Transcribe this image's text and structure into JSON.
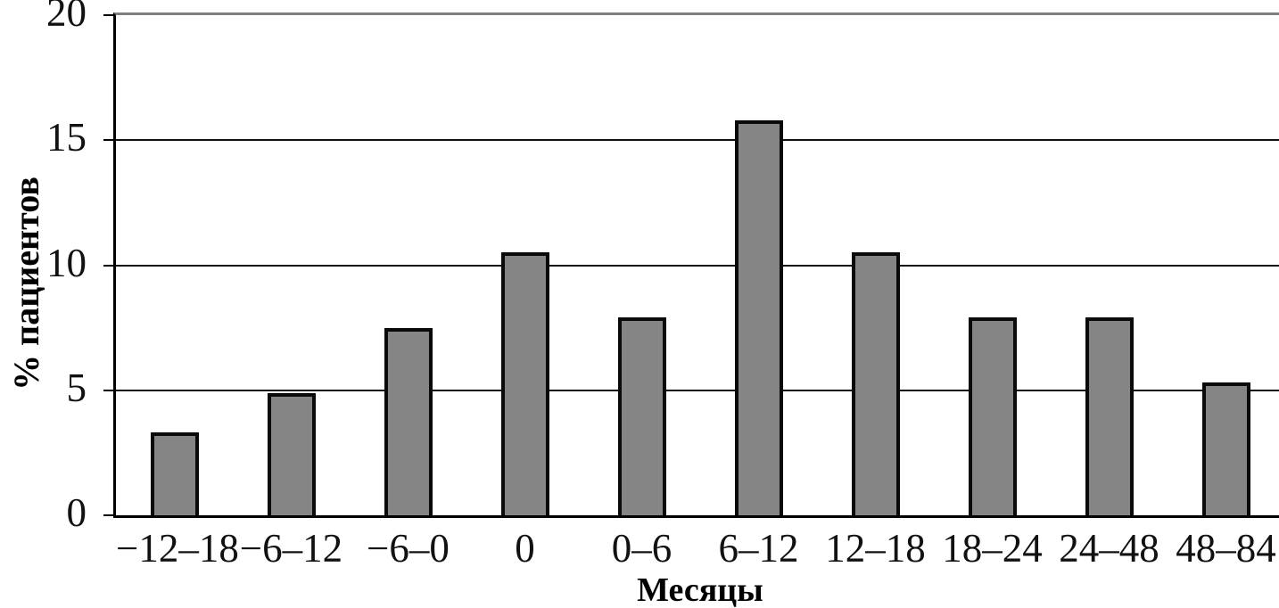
{
  "chart_data": {
    "type": "bar",
    "title": "",
    "categories": [
      "−12–18",
      "−6–12",
      "−6–0",
      "0",
      "0–6",
      "6–12",
      "12–18",
      "18–24",
      "24–48",
      "48–84"
    ],
    "values": [
      3.3,
      4.9,
      7.5,
      10.5,
      7.9,
      15.8,
      10.5,
      7.9,
      7.9,
      5.3
    ],
    "xlabel": "Месяцы",
    "ylabel": "% пациентов",
    "yticks": [
      0,
      5,
      10,
      15,
      20
    ],
    "ylim": [
      0,
      20
    ],
    "grid": "horizontal",
    "legend_position": "none",
    "bar_fill_color": "#858585",
    "bar_border_color": "#0a0a0a",
    "gridline_color": "#111111",
    "axis_color": "#000000",
    "top_border_color": "#7f7f7f",
    "background_color": "#ffffff"
  }
}
